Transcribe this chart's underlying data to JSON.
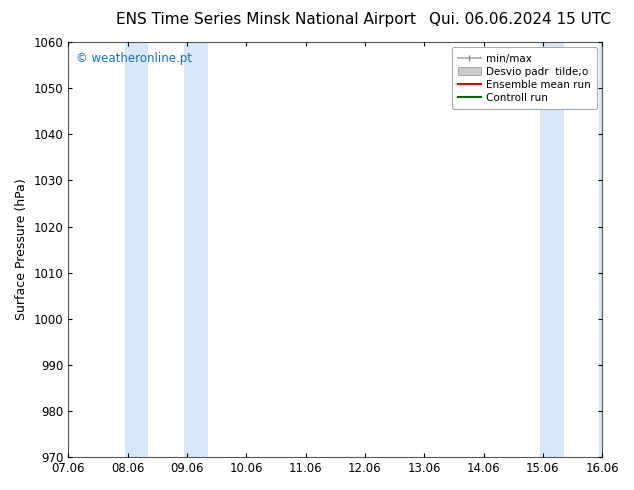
{
  "title_left": "ENS Time Series Minsk National Airport",
  "title_right": "Qui. 06.06.2024 15 UTC",
  "ylabel": "Surface Pressure (hPa)",
  "ylim": [
    970,
    1060
  ],
  "yticks": [
    970,
    980,
    990,
    1000,
    1010,
    1020,
    1030,
    1040,
    1050,
    1060
  ],
  "xtick_labels": [
    "07.06",
    "08.06",
    "09.06",
    "10.06",
    "11.06",
    "12.06",
    "13.06",
    "14.06",
    "15.06",
    "16.06"
  ],
  "xtick_positions": [
    0,
    1,
    2,
    3,
    4,
    5,
    6,
    7,
    8,
    9
  ],
  "xlim": [
    0,
    9
  ],
  "shaded_bands": [
    {
      "x_start": 0.95,
      "x_end": 1.35,
      "color": "#d6e8f7"
    },
    {
      "x_start": 1.95,
      "x_end": 2.35,
      "color": "#d6e8f7"
    },
    {
      "x_start": 7.95,
      "x_end": 8.35,
      "color": "#d6e8f7"
    },
    {
      "x_start": 8.95,
      "x_end": 9.0,
      "color": "#d6e8f7"
    }
  ],
  "watermark_text": "© weatheronline.pt",
  "watermark_color": "#1a6fc4",
  "background_color": "#ffffff",
  "plot_bg_color": "#ffffff",
  "border_color": "#555555",
  "title_fontsize": 11,
  "label_fontsize": 9,
  "tick_fontsize": 8.5
}
